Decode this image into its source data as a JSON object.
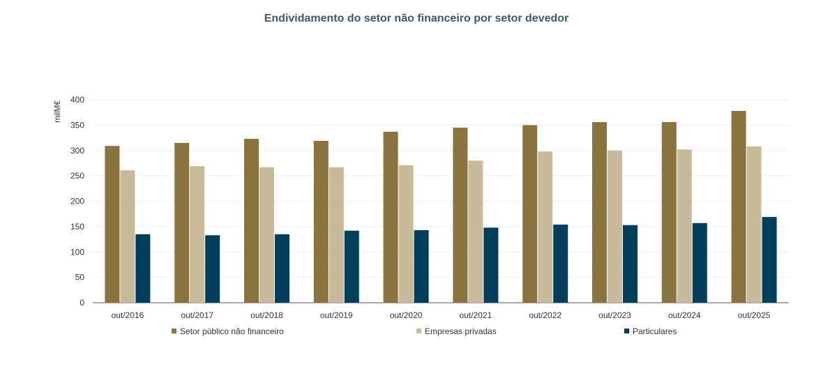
{
  "chart_data": {
    "type": "bar",
    "title": "Endividamento do setor não financeiro por setor devedor",
    "ylabel": "milM€",
    "xlabel": "",
    "ylim": [
      0,
      400
    ],
    "yticks": [
      0,
      50,
      100,
      150,
      200,
      250,
      300,
      350,
      400
    ],
    "grid": true,
    "legend_placement": "bottom",
    "categories": [
      "out/2016",
      "out/2017",
      "out/2018",
      "out/2019",
      "out/2020",
      "out/2021",
      "out/2022",
      "out/2023",
      "out/2024",
      "out/2025"
    ],
    "series": [
      {
        "name": "Setor público não financeiro",
        "color": "#8B7340",
        "values": [
          309,
          315,
          323,
          319,
          337,
          345,
          350,
          356,
          356,
          378
        ]
      },
      {
        "name": "Empresas privadas",
        "color": "#C8B99B",
        "values": [
          261,
          269,
          267,
          267,
          271,
          280,
          298,
          300,
          302,
          308
        ]
      },
      {
        "name": "Particulares",
        "color": "#003F5C",
        "values": [
          135,
          133,
          135,
          142,
          143,
          148,
          154,
          153,
          157,
          169
        ]
      }
    ]
  }
}
